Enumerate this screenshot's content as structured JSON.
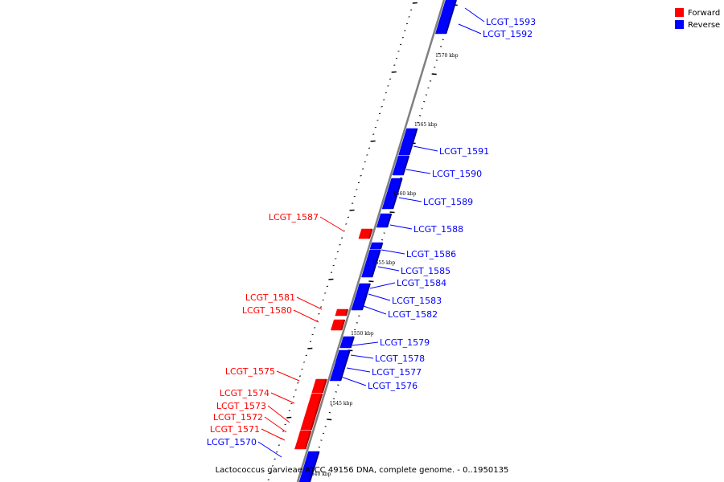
{
  "colors": {
    "forward": "#ff0000",
    "reverse": "#0000ff",
    "axis": "#808080",
    "tick": "#000000"
  },
  "legend": [
    {
      "key": "forward",
      "label": "Forward",
      "color": "#ff0000"
    },
    {
      "key": "reverse",
      "label": "Reverse",
      "color": "#0000ff"
    }
  ],
  "caption": "Lactococcus garvieae ATCC 49156 DNA, complete genome. - 0..1950135",
  "position_labels": [
    "1570 kbp",
    "1565 kbp",
    "1560 kbp",
    "1555 kbp",
    "1550 kbp",
    "1545 kbp",
    "1540 kbp"
  ],
  "genes": [
    {
      "name": "LCGT_1593",
      "strand": "reverse"
    },
    {
      "name": "LCGT_1592",
      "strand": "reverse"
    },
    {
      "name": "LCGT_1591",
      "strand": "reverse"
    },
    {
      "name": "LCGT_1590",
      "strand": "reverse"
    },
    {
      "name": "LCGT_1589",
      "strand": "reverse"
    },
    {
      "name": "LCGT_1588",
      "strand": "reverse"
    },
    {
      "name": "LCGT_1587",
      "strand": "forward"
    },
    {
      "name": "LCGT_1586",
      "strand": "reverse"
    },
    {
      "name": "LCGT_1585",
      "strand": "reverse"
    },
    {
      "name": "LCGT_1584",
      "strand": "reverse"
    },
    {
      "name": "LCGT_1583",
      "strand": "reverse"
    },
    {
      "name": "LCGT_1582",
      "strand": "reverse"
    },
    {
      "name": "LCGT_1581",
      "strand": "forward"
    },
    {
      "name": "LCGT_1580",
      "strand": "forward"
    },
    {
      "name": "LCGT_1579",
      "strand": "reverse"
    },
    {
      "name": "LCGT_1578",
      "strand": "reverse"
    },
    {
      "name": "LCGT_1577",
      "strand": "reverse"
    },
    {
      "name": "LCGT_1576",
      "strand": "reverse"
    },
    {
      "name": "LCGT_1575",
      "strand": "forward"
    },
    {
      "name": "LCGT_1574",
      "strand": "forward"
    },
    {
      "name": "LCGT_1573",
      "strand": "forward"
    },
    {
      "name": "LCGT_1572",
      "strand": "forward"
    },
    {
      "name": "LCGT_1571",
      "strand": "forward"
    },
    {
      "name": "LCGT_1570",
      "strand": "reverse"
    }
  ]
}
